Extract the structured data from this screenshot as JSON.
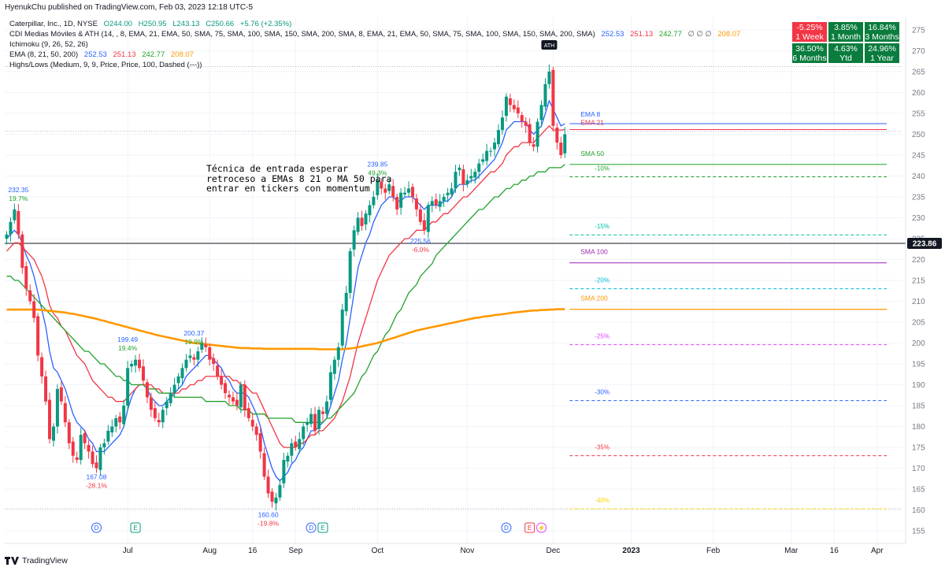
{
  "header": {
    "publish": "HyenukChu published on TradingView.com, Feb 03, 2023 12:18 UTC-5"
  },
  "legend": {
    "main": {
      "label": "Caterpillar, Inc., 1D, NYSE",
      "o": "O244.00",
      "h": "H250.95",
      "l": "L243.13",
      "c": "C250.66",
      "chg": "+5.76 (+2.35%)"
    },
    "cdi": {
      "label": "CDI Medias Móviles & ATH (14, , 8, EMA, 21, EMA, 50, SMA, 75, SMA, 100, SMA, 150, SMA, 200, SMA, 8, EMA, 21, EMA, 50, SMA, 75, SMA, 100, SMA, 150, SMA, 200, SMA)",
      "v1": "252.53",
      "v2": "251.13",
      "v3": "242.77",
      "v4": "∅ ∅ ∅",
      "v5": "208.07"
    },
    "ichimoku": {
      "label": "Ichimoku (9, 26, 52, 26)"
    },
    "ema": {
      "label": "EMA (8, 21, 50, 200)",
      "v1": "252.53",
      "v2": "251.13",
      "v3": "242.77",
      "v4": "208.07"
    },
    "highslows": {
      "label": "Highs/Lows (Medium, 9, 9, Price, Price, 100, Dashed (---))"
    }
  },
  "performance_table": [
    [
      {
        "value": "-5.25%",
        "period": "1 Week",
        "color": "#f23645"
      },
      {
        "value": "3.85%",
        "period": "1 Month",
        "color": "#0a7c3e"
      },
      {
        "value": "16.84%",
        "period": "3 Months",
        "color": "#0a7c3e"
      }
    ],
    [
      {
        "value": "36.50%",
        "period": "6 Months",
        "color": "#0a7c3e"
      },
      {
        "value": "4.63%",
        "period": "Ytd",
        "color": "#0a7c3e"
      },
      {
        "value": "24.96%",
        "period": "1 Year",
        "color": "#0a7c3e"
      }
    ]
  ],
  "annotation_text": "Técnica de entrada esperar retroceso a EMAs 8 21 o MA 50 para entrar en tickers con momentum",
  "footer": {
    "brand": "TradingView"
  },
  "colors": {
    "up": "#089981",
    "down": "#f23645",
    "ema8": "#2962ff",
    "ema21": "#f23645",
    "sma50": "#22a22b",
    "sma100": "#9c27b0",
    "sma200": "#ff9800",
    "price_label": "#131722"
  },
  "chart_data": {
    "type": "candlestick",
    "ylim": [
      152,
      278
    ],
    "y_ticks": [
      155,
      160,
      165,
      170,
      175,
      180,
      185,
      190,
      195,
      200,
      205,
      210,
      215,
      220,
      225,
      230,
      235,
      240,
      245,
      250,
      255,
      260,
      265,
      270,
      275
    ],
    "x_ticks": [
      {
        "label": "Jul",
        "bar": 31
      },
      {
        "label": "Aug",
        "bar": 52
      },
      {
        "label": "16",
        "bar": 63
      },
      {
        "label": "Sep",
        "bar": 74
      },
      {
        "label": "Oct",
        "bar": 95
      },
      {
        "label": "Nov",
        "bar": 118
      },
      {
        "label": "Dec",
        "bar": 140
      },
      {
        "label": "2023",
        "bar": 160
      },
      {
        "label": "Feb",
        "bar": 181
      },
      {
        "label": "Mar",
        "bar": 201
      },
      {
        "label": "16",
        "bar": 212
      },
      {
        "label": "Apr",
        "bar": 223
      }
    ],
    "bars_total": 230,
    "current_price_label": "223.86",
    "closes": [
      226,
      229,
      232,
      226,
      218,
      213,
      210,
      206,
      197,
      192,
      186,
      177,
      180,
      189,
      186,
      181,
      176,
      173,
      172,
      178,
      176,
      174,
      171,
      170,
      175,
      176,
      179,
      180,
      182,
      181,
      185,
      194,
      195,
      196,
      194,
      191,
      187,
      184,
      182,
      181,
      184,
      186,
      188,
      190,
      192,
      194,
      196,
      197,
      196,
      198,
      200,
      199,
      196,
      195,
      192,
      190,
      188,
      187,
      186,
      185,
      190,
      184,
      182,
      180,
      178,
      174,
      168,
      164,
      162,
      163,
      166,
      172,
      173,
      176,
      175,
      177,
      180,
      181,
      183,
      179,
      184,
      183,
      186,
      193,
      196,
      199,
      208,
      212,
      222,
      227,
      230,
      228,
      231,
      233,
      235,
      239,
      237,
      236,
      238,
      235,
      232,
      236,
      236,
      237,
      235,
      232,
      229,
      227,
      233,
      234,
      233,
      234,
      235,
      236,
      237,
      241,
      242,
      238,
      239,
      240,
      241,
      243,
      244,
      246,
      246,
      248,
      251,
      254,
      259,
      257,
      256,
      255,
      253,
      252,
      248,
      247,
      253,
      257,
      262,
      265,
      252,
      248,
      245,
      250
    ],
    "series": [
      {
        "name": "EMA 8",
        "color": "#2962ff",
        "values": [
          225,
          226,
          227,
          226,
          224,
          221,
          219,
          216,
          212,
          208,
          204,
          198,
          194,
          193,
          191,
          189,
          186,
          183,
          181,
          180,
          179,
          177,
          176,
          174,
          174,
          174,
          175,
          176,
          177,
          178,
          180,
          184,
          187,
          189,
          190,
          190,
          189,
          187,
          186,
          185,
          185,
          186,
          187,
          188,
          189,
          190,
          192,
          193,
          194,
          195,
          196,
          197,
          197,
          196,
          195,
          194,
          192,
          191,
          189,
          188,
          188,
          188,
          187,
          185,
          183,
          180,
          176,
          173,
          170,
          168,
          167,
          168,
          169,
          171,
          172,
          174,
          175,
          177,
          179,
          179,
          180,
          181,
          182,
          185,
          188,
          191,
          196,
          200,
          206,
          212,
          218,
          221,
          224,
          226,
          229,
          231,
          233,
          234,
          235,
          235,
          234,
          234,
          235,
          235,
          235,
          234,
          233,
          232,
          233,
          233,
          233,
          233,
          234,
          234,
          235,
          237,
          238,
          238,
          238,
          239,
          239,
          240,
          241,
          242,
          243,
          244,
          246,
          248,
          251,
          252,
          253,
          253,
          253,
          253,
          251,
          250,
          251,
          252,
          255,
          258,
          256,
          254,
          252,
          252.5
        ]
      },
      {
        "name": "EMA 21",
        "color": "#f23645",
        "values": [
          222,
          223,
          224,
          224,
          223,
          222,
          221,
          220,
          218,
          216,
          213,
          209,
          207,
          206,
          204,
          203,
          201,
          199,
          197,
          196,
          195,
          193,
          191,
          190,
          189,
          188,
          187,
          187,
          186,
          186,
          186,
          187,
          188,
          189,
          190,
          190,
          190,
          190,
          189,
          189,
          188,
          188,
          188,
          188,
          188,
          189,
          189,
          190,
          190,
          191,
          191,
          192,
          192,
          192,
          192,
          192,
          192,
          192,
          191,
          191,
          190,
          190,
          189,
          188,
          188,
          186,
          184,
          182,
          180,
          178,
          176,
          175,
          175,
          175,
          175,
          176,
          176,
          177,
          178,
          178,
          179,
          179,
          180,
          181,
          182,
          184,
          186,
          189,
          192,
          196,
          200,
          203,
          206,
          209,
          212,
          215,
          217,
          219,
          221,
          222,
          223,
          224,
          225,
          225,
          226,
          227,
          227,
          227,
          228,
          229,
          229,
          230,
          231,
          231,
          232,
          233,
          234,
          235,
          235,
          236,
          237,
          238,
          239,
          240,
          241,
          241,
          242,
          243,
          245,
          246,
          247,
          247,
          248,
          248,
          248,
          248,
          249,
          250,
          251,
          252,
          251,
          251,
          251,
          251.1
        ]
      },
      {
        "name": "SMA 50",
        "color": "#22a22b",
        "values": [
          216,
          216,
          215,
          215,
          214,
          213,
          212,
          211,
          210,
          209,
          208,
          207,
          206,
          205,
          204,
          203,
          202,
          201,
          200,
          199,
          198,
          198,
          197,
          196,
          195,
          195,
          194,
          193,
          192,
          192,
          191,
          191,
          190,
          190,
          190,
          190,
          189,
          189,
          189,
          188,
          188,
          188,
          188,
          187,
          187,
          187,
          187,
          187,
          187,
          187,
          187,
          186,
          186,
          186,
          186,
          186,
          186,
          185,
          185,
          185,
          184,
          184,
          184,
          183,
          183,
          183,
          183,
          182,
          182,
          182,
          182,
          182,
          182,
          182,
          181,
          181,
          181,
          181,
          181,
          181,
          181,
          181,
          182,
          182,
          183,
          184,
          185,
          186,
          187,
          188,
          190,
          192,
          193,
          195,
          197,
          198,
          200,
          202,
          203,
          205,
          207,
          208,
          210,
          212,
          213,
          214,
          216,
          217,
          218,
          219,
          221,
          222,
          223,
          224,
          225,
          226,
          227,
          228,
          229,
          230,
          231,
          232,
          232,
          233,
          234,
          235,
          235,
          236,
          237,
          237,
          238,
          238,
          239,
          239,
          240,
          240,
          241,
          241,
          241,
          242,
          242,
          242,
          242,
          242.8
        ]
      },
      {
        "name": "SMA 200",
        "color": "#ff9800",
        "values": [
          208,
          208,
          208,
          208,
          208,
          208,
          208,
          208,
          208,
          207.9,
          207.8,
          207.7,
          207.6,
          207.5,
          207.4,
          207.3,
          207.1,
          207,
          206.8,
          206.6,
          206.4,
          206.2,
          206,
          205.8,
          205.5,
          205.3,
          205,
          204.8,
          204.5,
          204.3,
          204,
          203.8,
          203.5,
          203.3,
          203,
          202.8,
          202.5,
          202.3,
          202,
          201.8,
          201.6,
          201.4,
          201.2,
          201,
          200.8,
          200.6,
          200.4,
          200.2,
          200,
          199.9,
          199.8,
          199.7,
          199.6,
          199.5,
          199.4,
          199.3,
          199.2,
          199.1,
          199,
          198.9,
          198.8,
          198.8,
          198.8,
          198.7,
          198.7,
          198.7,
          198.6,
          198.6,
          198.6,
          198.6,
          198.6,
          198.6,
          198.6,
          198.6,
          198.6,
          198.6,
          198.6,
          198.6,
          198.6,
          198.6,
          198.5,
          198.5,
          198.5,
          198.5,
          198.5,
          198.5,
          198.5,
          198.6,
          198.7,
          198.8,
          199,
          199.2,
          199.4,
          199.6,
          199.8,
          200,
          200.3,
          200.6,
          200.9,
          201.2,
          201.5,
          201.8,
          202.1,
          202.4,
          202.7,
          203,
          203.2,
          203.4,
          203.6,
          203.8,
          204,
          204.2,
          204.4,
          204.6,
          204.8,
          205,
          205.2,
          205.4,
          205.6,
          205.8,
          206,
          206.1,
          206.3,
          206.4,
          206.5,
          206.7,
          206.8,
          206.9,
          207,
          207.2,
          207.3,
          207.4,
          207.5,
          207.6,
          207.7,
          207.8,
          207.8,
          207.9,
          207.9,
          208,
          208,
          208.1,
          208.1,
          208.07
        ]
      }
    ],
    "reference_lines": [
      {
        "y": 252.53,
        "color": "#2962ff",
        "label": "EMA 8"
      },
      {
        "y": 251.13,
        "color": "#f23645",
        "label": "EMA 21"
      },
      {
        "y": 242.77,
        "color": "#22a22b",
        "label": "SMA 50"
      },
      {
        "y": 219.2,
        "color": "#9c27b0",
        "label": "SMA 100"
      },
      {
        "y": 208.07,
        "color": "#ff9800",
        "label": "SMA 200"
      }
    ],
    "retracement_levels": [
      {
        "label": "-10%",
        "y": 239.8,
        "color": "#22a22b"
      },
      {
        "label": "-15%",
        "y": 225.9,
        "color": "#00bfa5"
      },
      {
        "label": "-20%",
        "y": 213,
        "color": "#00bcd4"
      },
      {
        "label": "-25%",
        "y": 199.6,
        "color": "#e040fb"
      },
      {
        "label": "-30%",
        "y": 186.2,
        "color": "#2962ff"
      },
      {
        "label": "-35%",
        "y": 173,
        "color": "#f23645"
      },
      {
        "label": "-40%",
        "y": 160.3,
        "color": "#ffd600"
      }
    ],
    "pivots": [
      {
        "bar": 3,
        "price": 232.35,
        "label": "232.35",
        "pct": "19.7%",
        "pos": "above",
        "pct_color": "#22a22b"
      },
      {
        "bar": 23,
        "price": 170,
        "label": "167.08",
        "pct": "-28.1%",
        "pos": "below",
        "pct_color": "#f23645"
      },
      {
        "bar": 31,
        "price": 196.5,
        "label": "199.49",
        "pct": "19.4%",
        "pos": "above",
        "pct_color": "#22a22b"
      },
      {
        "bar": 48,
        "price": 198,
        "label": "200.37",
        "pct": "19.9%",
        "pos": "above",
        "pct_color": "#22a22b"
      },
      {
        "bar": 67,
        "price": 161,
        "label": "160.60",
        "pct": "-19.8%",
        "pos": "below",
        "pct_color": "#f23645"
      },
      {
        "bar": 95,
        "price": 238.5,
        "label": "239.85",
        "pct": "49.3%",
        "pos": "above",
        "pct_color": "#22a22b"
      },
      {
        "bar": 106,
        "price": 226.5,
        "label": "225.56",
        "pct": "-6.0%",
        "pos": "below",
        "pct_color": "#f23645"
      }
    ],
    "event_markers": [
      {
        "bar": 23,
        "type": "D",
        "color": "#2962ff"
      },
      {
        "bar": 33,
        "type": "E",
        "color": "#089981"
      },
      {
        "bar": 78,
        "type": "D",
        "color": "#2962ff"
      },
      {
        "bar": 81,
        "type": "E",
        "color": "#089981"
      },
      {
        "bar": 128,
        "type": "D",
        "color": "#2962ff"
      },
      {
        "bar": 134,
        "type": "E",
        "color": "#f23645"
      },
      {
        "bar": 137,
        "type": "⚡",
        "color": "#e040fb"
      }
    ],
    "ath_marker": "ATH"
  }
}
